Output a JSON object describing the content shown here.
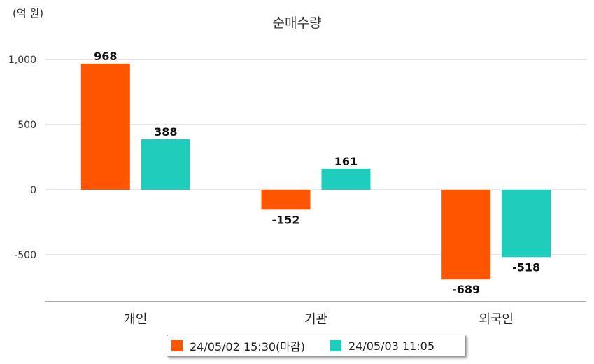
{
  "chart_data": {
    "type": "bar",
    "title": "순매수량",
    "unit_label": "(억 원)",
    "categories": [
      "개인",
      "기관",
      "외국인"
    ],
    "series": [
      {
        "name": "24/05/02 15:30(마감)",
        "color": "#FF5500",
        "values": [
          968,
          -152,
          -689
        ]
      },
      {
        "name": "24/05/03 11:05",
        "color": "#1ECDBB",
        "values": [
          388,
          161,
          -518
        ]
      }
    ],
    "yticks": [
      1000,
      500,
      0,
      -500
    ],
    "ytick_labels": [
      "1,000",
      "500",
      "0",
      "-500"
    ],
    "ylim": [
      -850,
      1150
    ],
    "grid": true,
    "legend_position": "bottom"
  }
}
